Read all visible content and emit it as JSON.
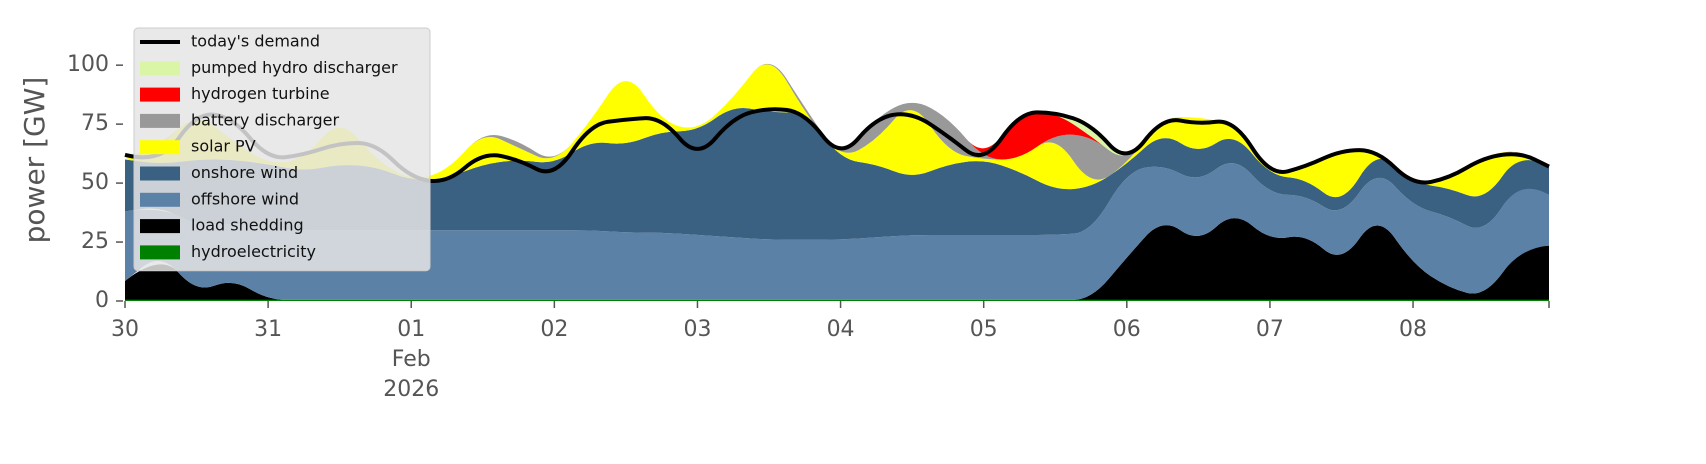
{
  "chart_data": {
    "type": "stacked_area",
    "ylabel": "power [GW]",
    "x": [
      0,
      0.25,
      0.5,
      0.75,
      1,
      1.25,
      1.5,
      1.75,
      2,
      2.25,
      2.5,
      2.75,
      3,
      3.25,
      3.5,
      3.75,
      4,
      4.25,
      4.5,
      4.75,
      5,
      5.25,
      5.5,
      5.75,
      6,
      6.25,
      6.5,
      6.75,
      7,
      7.25,
      7.5,
      7.75,
      8,
      8.25,
      8.5,
      8.75,
      9,
      9.25,
      9.5,
      9.75,
      9.95
    ],
    "xlim": [
      0,
      9.95
    ],
    "xticks": [
      {
        "value": 0,
        "label": "30"
      },
      {
        "value": 1,
        "label": "31"
      },
      {
        "value": 2,
        "label": "01"
      },
      {
        "value": 3,
        "label": "02"
      },
      {
        "value": 4,
        "label": "03"
      },
      {
        "value": 5,
        "label": "04"
      },
      {
        "value": 6,
        "label": "05"
      },
      {
        "value": 7,
        "label": "06"
      },
      {
        "value": 8,
        "label": "07"
      },
      {
        "value": 9,
        "label": "08"
      }
    ],
    "xtick_month": "Feb",
    "xtick_year": "2026",
    "ylim": [
      0,
      120
    ],
    "yticks": [
      0,
      25,
      50,
      75,
      100
    ],
    "legend": "upper left",
    "series": [
      {
        "name": "hydroelectricity",
        "color": "#008000",
        "values": [
          0.5,
          0.5,
          0.5,
          0.5,
          0.5,
          0.5,
          0.5,
          0.5,
          0.5,
          0.5,
          0.5,
          0.5,
          0.5,
          0.5,
          0.5,
          0.5,
          0.5,
          0.5,
          0.5,
          0.5,
          0.5,
          0.5,
          0.5,
          0.5,
          0.5,
          0.5,
          0.5,
          0.5,
          0.5,
          0.5,
          0.5,
          0.5,
          0.5,
          0.5,
          0.5,
          0.5,
          0.5,
          0.5,
          0.5,
          0.5,
          0.5
        ]
      },
      {
        "name": "load shedding",
        "color": "#000000",
        "values": [
          8,
          20,
          3,
          9,
          0,
          0,
          0,
          0,
          0,
          0,
          0,
          0,
          0,
          0,
          0,
          0,
          0,
          0,
          0,
          0,
          0,
          0,
          0,
          0,
          0,
          0,
          0,
          0,
          18,
          35,
          24,
          38,
          25,
          28,
          15,
          37,
          15,
          5,
          1,
          22,
          23
        ]
      },
      {
        "name": "offshore wind",
        "color": "#5b82a6",
        "values": [
          29.5,
          19.5,
          28.5,
          23.5,
          30.5,
          29.5,
          29.5,
          29.5,
          29.5,
          29.5,
          29.5,
          29.5,
          29.5,
          29.5,
          28.5,
          28.5,
          27.5,
          26.5,
          25.5,
          25.5,
          25.5,
          26.5,
          27.5,
          27.5,
          27.5,
          27.5,
          27.5,
          28.5,
          36.5,
          22.5,
          25.5,
          23.5,
          19.5,
          16.5,
          19.5,
          19.5,
          24.5,
          30.5,
          26.5,
          29.5,
          21.5
        ]
      },
      {
        "name": "onshore wind",
        "color": "#3b6182",
        "values": [
          22,
          18,
          28,
          27,
          27,
          25,
          28,
          27,
          21,
          22,
          28,
          30,
          28,
          38,
          37,
          43,
          44,
          56,
          54,
          54,
          34,
          31,
          24,
          30,
          32,
          27,
          19,
          19,
          3,
          14,
          12,
          10,
          8,
          7,
          5,
          8,
          10,
          12,
          14,
          12,
          12
        ]
      },
      {
        "name": "solar PV",
        "color": "#ffff00",
        "values": [
          0,
          8,
          20,
          8,
          0,
          5,
          20,
          3,
          0,
          3,
          14,
          5,
          0,
          8,
          33,
          4,
          0,
          3,
          26,
          0,
          0,
          10,
          34,
          5,
          0,
          5,
          24,
          0,
          0,
          6,
          16,
          3,
          0,
          5,
          24,
          0,
          0,
          3,
          20,
          0,
          0
        ]
      },
      {
        "name": "battery discharger",
        "color": "#999999",
        "values": [
          0,
          0,
          0,
          0,
          0,
          0,
          0,
          0,
          0,
          0,
          0,
          3,
          0,
          0,
          0,
          0,
          0,
          0,
          0,
          2,
          0,
          10,
          0,
          15,
          0,
          0,
          0,
          22,
          0,
          0,
          0,
          0,
          0,
          0,
          0,
          0,
          0,
          0,
          0,
          0,
          0
        ]
      },
      {
        "name": "hydrogen turbine",
        "color": "#ff0000",
        "values": [
          0,
          0,
          0,
          0,
          0,
          0,
          0,
          0,
          0,
          0,
          0,
          0,
          0,
          0,
          0,
          0,
          0,
          0,
          0,
          0,
          0,
          0,
          0,
          0,
          0,
          20,
          9,
          0,
          0,
          0,
          0,
          0,
          0,
          0,
          0,
          0,
          0,
          0,
          0,
          0,
          0
        ]
      },
      {
        "name": "pumped hydro discharger",
        "color": "#daf5a6",
        "values": [
          0,
          0,
          0,
          0,
          0,
          0,
          0,
          0,
          0,
          0,
          0,
          0,
          0,
          0,
          0,
          0,
          0,
          0,
          0,
          0,
          0,
          0,
          0,
          0,
          0,
          0,
          0,
          6,
          0,
          0,
          0,
          0,
          0,
          0,
          0,
          0,
          0,
          0,
          0,
          0,
          0
        ]
      }
    ],
    "line": {
      "name": "today's demand",
      "color": "#000000",
      "values": [
        62,
        58,
        80,
        78,
        60,
        62,
        67,
        67,
        52,
        50,
        63,
        60,
        52,
        75,
        77,
        78,
        60,
        78,
        82,
        80,
        60,
        78,
        80,
        70,
        58,
        80,
        80,
        75,
        58,
        78,
        75,
        77,
        53,
        57,
        64,
        64,
        49,
        52,
        61,
        63,
        57
      ]
    }
  }
}
